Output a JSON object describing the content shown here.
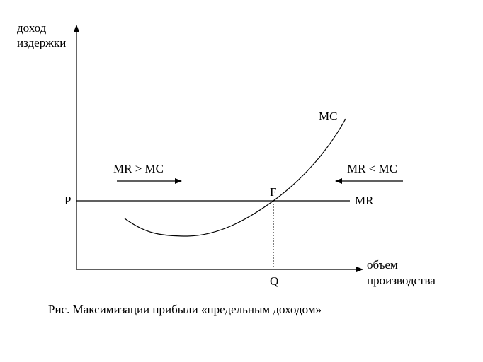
{
  "diagram": {
    "y_axis_label_line1": "доход",
    "y_axis_label_line2": "издержки",
    "x_axis_label_line1": "объем",
    "x_axis_label_line2": "производства",
    "price_label": "P",
    "quantity_label": "Q",
    "point_label": "F",
    "mc_label": "MC",
    "mr_label": "MR",
    "left_region_label": "MR > MC",
    "right_region_label": "MR < MC"
  },
  "caption": "Рис. Максимизации прибыли «предельным доходом»"
}
